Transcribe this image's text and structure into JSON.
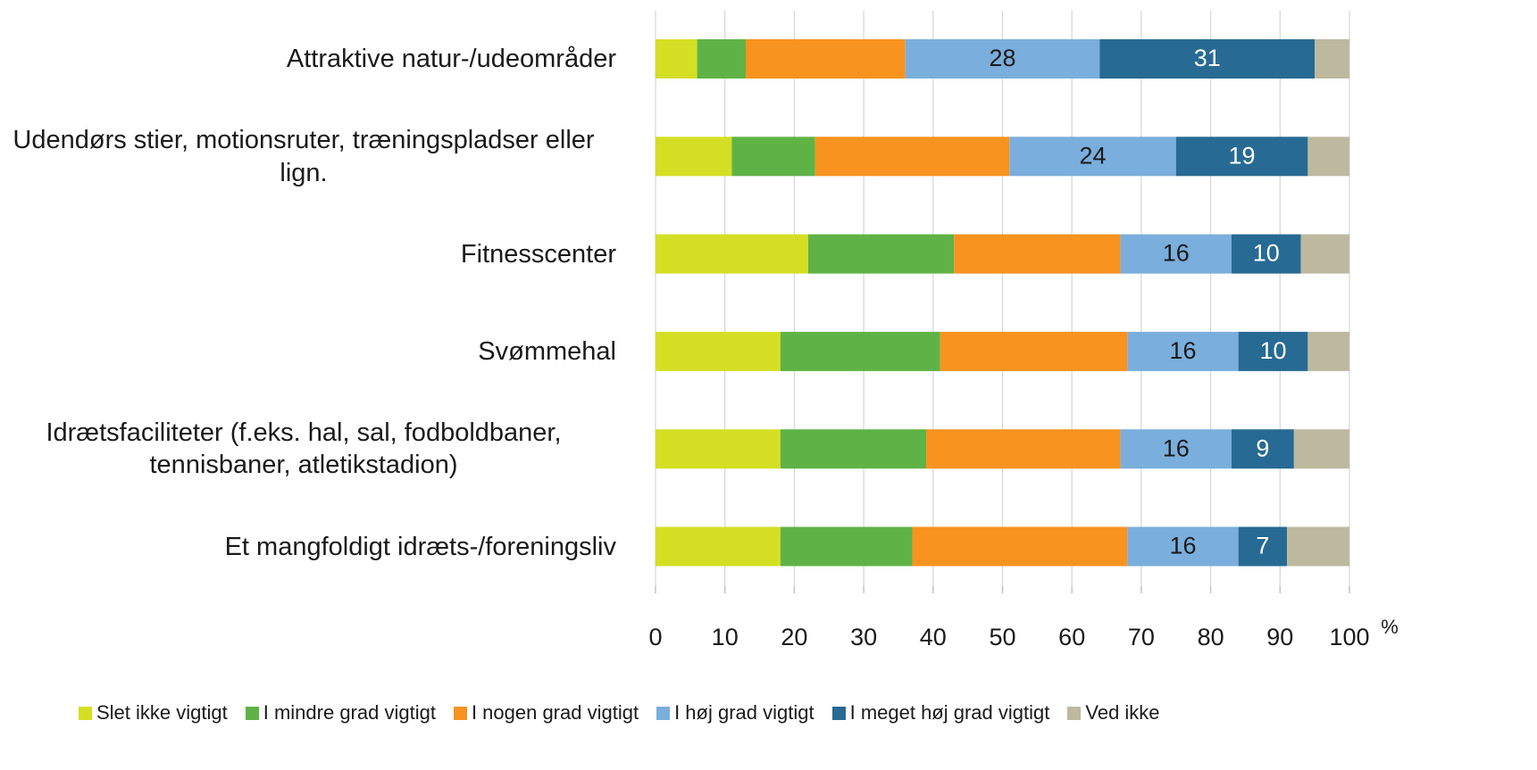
{
  "chart_data": {
    "type": "bar",
    "orientation": "horizontal",
    "stacked": true,
    "categories": [
      "Attraktive natur-/udeområder",
      "Udendørs stier, motionsruter, træningspladser eller lign.",
      "Fitnesscenter",
      "Svømmehal",
      "Idrætsfaciliteter (f.eks. hal, sal, fodboldbaner, tennisbaner, atletikstadion)",
      "Et mangfoldigt idræts-/foreningsliv"
    ],
    "series": [
      {
        "name": "Slet ikke vigtigt",
        "color": "#d4df24",
        "values": [
          6,
          11,
          22,
          18,
          18,
          18
        ]
      },
      {
        "name": "I mindre grad vigtigt",
        "color": "#5fb346",
        "values": [
          7,
          12,
          21,
          23,
          21,
          19
        ]
      },
      {
        "name": "I nogen grad vigtigt",
        "color": "#f7931e",
        "values": [
          23,
          28,
          24,
          27,
          28,
          31
        ]
      },
      {
        "name": "I høj grad vigtigt",
        "color": "#7aaedc",
        "values": [
          28,
          24,
          16,
          16,
          16,
          16
        ],
        "show_labels": true,
        "label_color": "#1a1a1a"
      },
      {
        "name": "I meget høj grad vigtigt",
        "color": "#276a93",
        "values": [
          31,
          19,
          10,
          10,
          9,
          7
        ],
        "show_labels": true,
        "label_color": "#ffffff"
      },
      {
        "name": "Ved ikke",
        "color": "#bdb99f",
        "values": [
          5,
          6,
          7,
          6,
          8,
          9
        ]
      }
    ],
    "xlim": [
      0,
      100
    ],
    "xticks": [
      0,
      10,
      20,
      30,
      40,
      50,
      60,
      70,
      80,
      90,
      100
    ],
    "x_unit": "%",
    "grid": true,
    "legend": "bottom"
  }
}
